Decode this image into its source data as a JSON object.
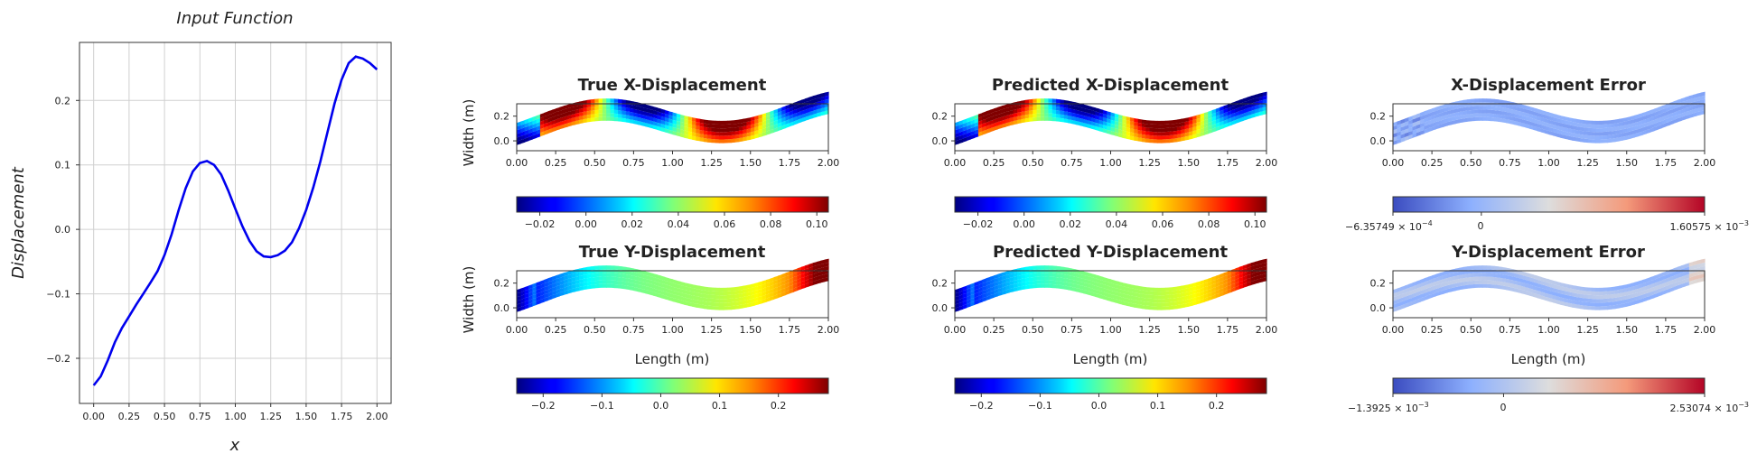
{
  "chart_data": [
    {
      "type": "line",
      "title": "Input Function",
      "xlabel": "x",
      "ylabel": "Displacement",
      "xlim": [
        -0.1,
        2.1
      ],
      "ylim": [
        -0.27,
        0.29
      ],
      "grid": true,
      "color": "#0000ee",
      "x": [
        0.0,
        0.05,
        0.1,
        0.15,
        0.2,
        0.25,
        0.3,
        0.35,
        0.4,
        0.45,
        0.5,
        0.55,
        0.6,
        0.65,
        0.7,
        0.75,
        0.8,
        0.85,
        0.9,
        0.95,
        1.0,
        1.05,
        1.1,
        1.15,
        1.2,
        1.25,
        1.3,
        1.35,
        1.4,
        1.45,
        1.5,
        1.55,
        1.6,
        1.65,
        1.7,
        1.75,
        1.8,
        1.85,
        1.9,
        1.95,
        2.0
      ],
      "y": [
        -0.242,
        -0.228,
        -0.203,
        -0.175,
        -0.153,
        -0.135,
        -0.117,
        -0.1,
        -0.083,
        -0.065,
        -0.04,
        -0.008,
        0.03,
        0.064,
        0.09,
        0.103,
        0.106,
        0.1,
        0.085,
        0.06,
        0.032,
        0.005,
        -0.018,
        -0.034,
        -0.042,
        -0.043,
        -0.04,
        -0.033,
        -0.02,
        0.002,
        0.03,
        0.065,
        0.105,
        0.15,
        0.195,
        0.232,
        0.258,
        0.268,
        0.265,
        0.258,
        0.248
      ],
      "xticks": [
        "0.00",
        "0.25",
        "0.50",
        "0.75",
        "1.00",
        "1.25",
        "1.50",
        "1.75",
        "2.00"
      ],
      "xtick_values": [
        0,
        0.25,
        0.5,
        0.75,
        1.0,
        1.25,
        1.5,
        1.75,
        2.0
      ],
      "yticks": [
        "−0.2",
        "−0.1",
        "0.0",
        "0.1",
        "0.2"
      ],
      "ytick_values": [
        -0.2,
        -0.1,
        0.0,
        0.1,
        0.2
      ]
    },
    {
      "type": "heatmap",
      "panels": [
        {
          "title": "True X-Displacement",
          "ylabel": "Width (m)",
          "xlabel": "",
          "cmap": "jet",
          "field": "x",
          "colorbar": {
            "ticks": [
              "−0.02",
              "0.00",
              "0.02",
              "0.04",
              "0.06",
              "0.08",
              "0.10"
            ],
            "tick_values": [
              -0.02,
              0,
              0.02,
              0.04,
              0.06,
              0.08,
              0.1
            ],
            "range": [
              -0.03,
              0.105
            ]
          }
        },
        {
          "title": "Predicted X-Displacement",
          "ylabel": "",
          "xlabel": "",
          "cmap": "jet",
          "field": "x",
          "colorbar": {
            "ticks": [
              "−0.02",
              "0.00",
              "0.02",
              "0.04",
              "0.06",
              "0.08",
              "0.10"
            ],
            "tick_values": [
              -0.02,
              0,
              0.02,
              0.04,
              0.06,
              0.08,
              0.1
            ],
            "range": [
              -0.03,
              0.105
            ]
          }
        },
        {
          "title": "X-Displacement Error",
          "ylabel": "",
          "xlabel": "",
          "cmap": "coolwarm",
          "field": "errx",
          "colorbar": {
            "min_label": "−6.35749 × 10",
            "min_exp": "−4",
            "zero_label": "0",
            "max_label": "1.60575 × 10",
            "max_exp": "−3",
            "range": [
              -0.000635749,
              0.00160575
            ]
          }
        },
        {
          "title": "True Y-Displacement",
          "ylabel": "Width (m)",
          "xlabel": "Length (m)",
          "cmap": "jet",
          "field": "y",
          "colorbar": {
            "ticks": [
              "−0.2",
              "−0.1",
              "0.0",
              "0.1",
              "0.2"
            ],
            "tick_values": [
              -0.2,
              -0.1,
              0.0,
              0.1,
              0.2
            ],
            "range": [
              -0.245,
              0.285
            ]
          }
        },
        {
          "title": "Predicted Y-Displacement",
          "ylabel": "",
          "xlabel": "Length (m)",
          "cmap": "jet",
          "field": "y",
          "colorbar": {
            "ticks": [
              "−0.2",
              "−0.1",
              "0.0",
              "0.1",
              "0.2"
            ],
            "tick_values": [
              -0.2,
              -0.1,
              0.0,
              0.1,
              0.2
            ],
            "range": [
              -0.245,
              0.285
            ]
          }
        },
        {
          "title": "Y-Displacement Error",
          "ylabel": "",
          "xlabel": "Length (m)",
          "cmap": "coolwarm",
          "field": "erry",
          "colorbar": {
            "min_label": "−1.3925 × 10",
            "min_exp": "−3",
            "zero_label": "0",
            "max_label": "2.53074 × 10",
            "max_exp": "−3",
            "range": [
              -0.0013925,
              0.00253074
            ]
          }
        }
      ],
      "xlim": [
        0,
        2.0
      ],
      "ylim": [
        -0.08,
        0.3
      ],
      "xticks": [
        "0.00",
        "0.25",
        "0.50",
        "0.75",
        "1.00",
        "1.25",
        "1.50",
        "1.75",
        "2.00"
      ],
      "xtick_values": [
        0,
        0.25,
        0.5,
        0.75,
        1.0,
        1.25,
        1.5,
        1.75,
        2.0
      ],
      "yticks": [
        "0.0",
        "0.2"
      ],
      "ytick_values": [
        0.0,
        0.2
      ]
    }
  ]
}
